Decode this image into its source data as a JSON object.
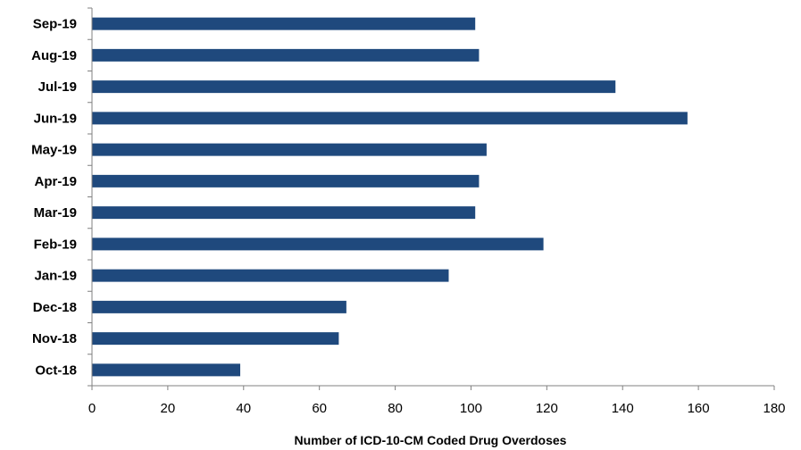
{
  "chart_data": {
    "type": "bar",
    "orientation": "horizontal",
    "categories": [
      "Oct-18",
      "Nov-18",
      "Dec-18",
      "Jan-19",
      "Feb-19",
      "Mar-19",
      "Apr-19",
      "May-19",
      "Jun-19",
      "Jul-19",
      "Aug-19",
      "Sep-19"
    ],
    "values": [
      39,
      65,
      67,
      94,
      119,
      101,
      102,
      104,
      157,
      138,
      102,
      101
    ],
    "xlabel": "Number of ICD-10-CM Coded Drug Overdoses",
    "xlim": [
      0,
      180
    ],
    "xticks": [
      0,
      20,
      40,
      60,
      80,
      100,
      120,
      140,
      160,
      180
    ],
    "grid": false,
    "bar_color": "#1F497D",
    "axis_color": "#808080"
  }
}
